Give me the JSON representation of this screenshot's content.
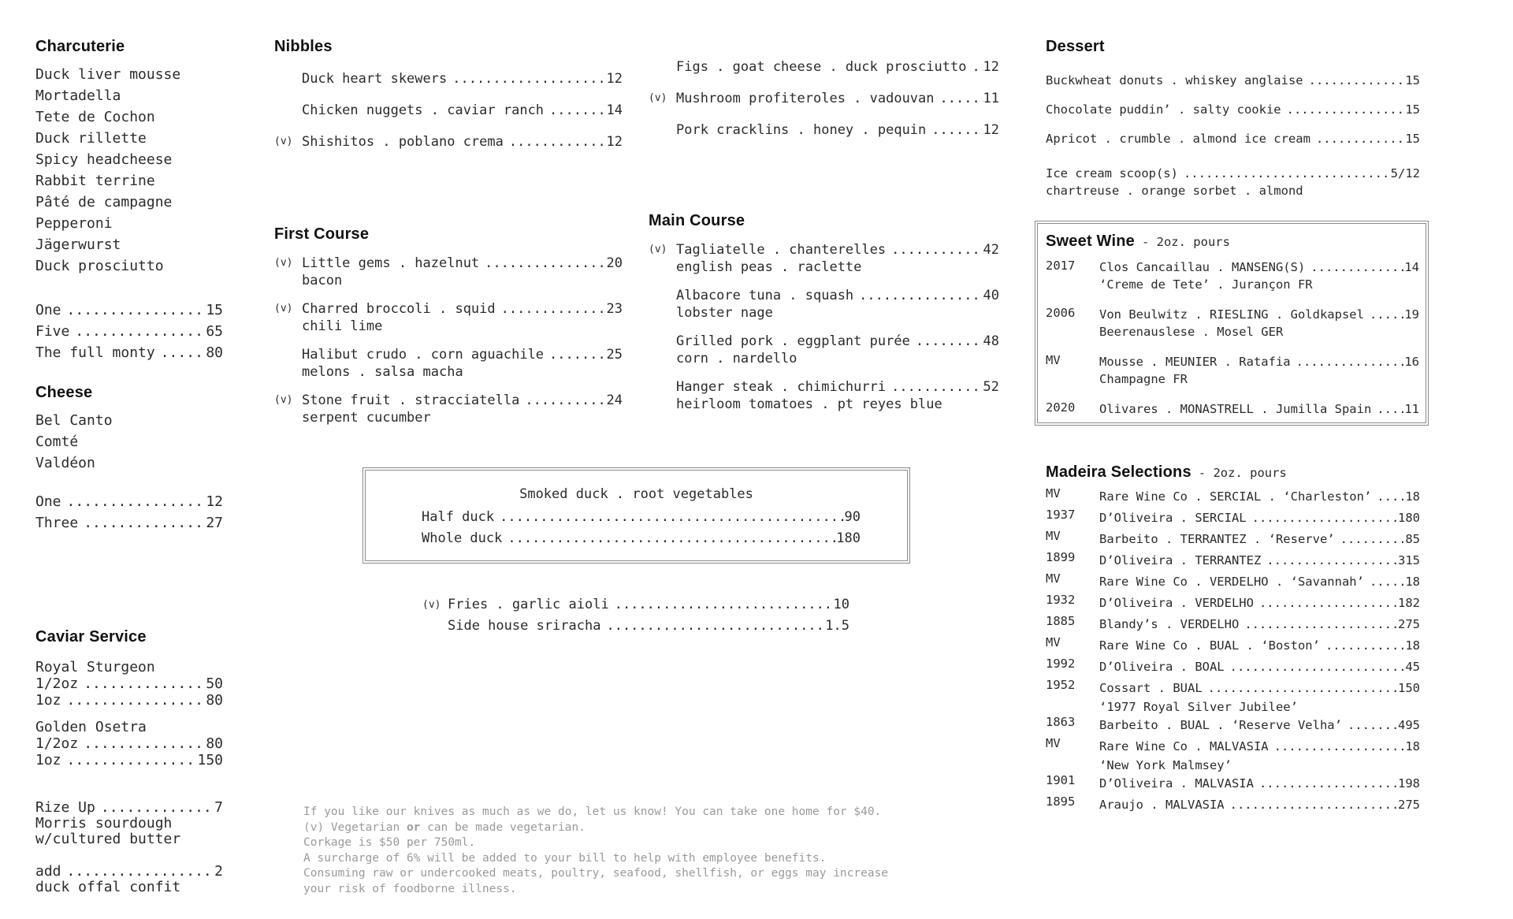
{
  "leader": "................................................................................",
  "colors": {
    "text": "#2b2b2b",
    "heading": "#111111",
    "muted": "#9a9a9a",
    "box_border": "#8a8a8a",
    "background": "#ffffff"
  },
  "left": {
    "charcuterie": {
      "title": "Charcuterie",
      "items": [
        "Duck liver mousse",
        "Mortadella",
        "Tete de Cochon",
        "Duck rillette",
        "Spicy headcheese",
        "Rabbit terrine",
        "Pâté de campagne",
        "Pepperoni",
        "Jägerwurst",
        "Duck prosciutto"
      ],
      "prices": [
        {
          "name": "One",
          "price": "15"
        },
        {
          "name": "Five",
          "price": "65"
        },
        {
          "name": "The full monty",
          "price": "80"
        }
      ]
    },
    "cheese": {
      "title": "Cheese",
      "items": [
        "Bel Canto",
        "Comté",
        "Valdéon"
      ],
      "prices": [
        {
          "name": "One",
          "price": "12"
        },
        {
          "name": "Three",
          "price": "27"
        }
      ]
    },
    "caviar": {
      "title": "Caviar Service",
      "tiers": [
        {
          "name": "Royal Sturgeon",
          "sizes": [
            {
              "name": "1/2oz",
              "price": "50"
            },
            {
              "name": "1oz",
              "price": "80"
            }
          ]
        },
        {
          "name": "Golden Osetra",
          "sizes": [
            {
              "name": "1/2oz",
              "price": "80"
            },
            {
              "name": "1oz",
              "price": "150"
            }
          ]
        }
      ]
    },
    "bread": {
      "blocks": [
        {
          "name": "Rize Up",
          "price": "7",
          "subs": [
            "Morris sourdough",
            "w/cultured butter"
          ]
        },
        {
          "name": "add",
          "price": "2",
          "subs": [
            "duck offal confit"
          ]
        }
      ]
    }
  },
  "nibbles": {
    "title": "Nibbles",
    "items": [
      {
        "v": "",
        "name": "Duck heart skewers",
        "price": "12"
      },
      {
        "v": "",
        "name": "Chicken nuggets . caviar ranch",
        "price": "14"
      },
      {
        "v": "(v)",
        "name": "Shishitos . poblano crema",
        "price": "12"
      }
    ]
  },
  "nibbles_right": {
    "items": [
      {
        "v": "",
        "name": "Figs . goat cheese . duck prosciutto",
        "price": "12"
      },
      {
        "v": "(v)",
        "name": "Mushroom profiteroles . vadouvan",
        "price": "11"
      },
      {
        "v": "",
        "name": "Pork cracklins . honey . pequin",
        "price": "12"
      }
    ]
  },
  "first_course": {
    "title": "First Course",
    "items": [
      {
        "v": "(v)",
        "name": "Little gems . hazelnut",
        "price": "20",
        "sub": "bacon"
      },
      {
        "v": "(v)",
        "name": "Charred broccoli . squid",
        "price": "23",
        "sub": "chili lime"
      },
      {
        "v": "",
        "name": "Halibut crudo . corn aguachile",
        "price": "25",
        "sub": "melons . salsa macha"
      },
      {
        "v": "(v)",
        "name": "Stone fruit . stracciatella",
        "price": "24",
        "sub": "serpent cucumber"
      }
    ]
  },
  "main_course": {
    "title": "Main Course",
    "items": [
      {
        "v": "(v)",
        "name": "Tagliatelle . chanterelles",
        "price": "42",
        "sub": "english peas . raclette"
      },
      {
        "v": "",
        "name": "Albacore tuna . squash",
        "price": "40",
        "sub": "lobster nage"
      },
      {
        "v": "",
        "name": "Grilled pork . eggplant purée",
        "price": "48",
        "sub": "corn . nardello"
      },
      {
        "v": "",
        "name": "Hanger steak . chimichurri",
        "price": "52",
        "sub": "heirloom tomatoes . pt reyes blue"
      }
    ]
  },
  "duck_feature": {
    "title": "Smoked duck . root vegetables",
    "rows": [
      {
        "name": "Half duck",
        "price": "90"
      },
      {
        "name": "Whole duck",
        "price": "180"
      }
    ]
  },
  "fries": {
    "rows": [
      {
        "v": "(v)",
        "name": "Fries . garlic aioli",
        "price": "10"
      },
      {
        "v": "",
        "name": "Side house sriracha",
        "price": "1.5"
      }
    ]
  },
  "dessert": {
    "title": "Dessert",
    "items": [
      {
        "name": "Buckwheat donuts . whiskey anglaise",
        "price": "15"
      },
      {
        "name": "Chocolate puddin’ . salty cookie",
        "price": "15"
      },
      {
        "name": "Apricot . crumble . almond ice cream",
        "price": "15"
      }
    ],
    "icecream": {
      "name": "Ice cream scoop(s)",
      "price": "5/12",
      "sub": "chartreuse . orange sorbet . almond"
    }
  },
  "sweet_wine": {
    "title": "Sweet Wine",
    "subtitle": "- 2oz. pours",
    "entries": [
      {
        "year": "2017",
        "name": "Clos Cancaillau . MANSENG(S)",
        "price": "14",
        "sub": "‘Creme de Tete’ . Jurançon FR"
      },
      {
        "year": "2006",
        "name": "Von Beulwitz . RIESLING . Goldkapsel",
        "price": "19",
        "sub": "Beerenauslese . Mosel GER"
      },
      {
        "year": "MV",
        "name": "Mousse . MEUNIER . Ratafia",
        "price": "16",
        "sub": "Champagne FR"
      },
      {
        "year": "2020",
        "name": "Olivares . MONASTRELL . Jumilla Spain",
        "price": "11"
      }
    ]
  },
  "madeira": {
    "title": "Madeira Selections",
    "subtitle": "- 2oz. pours",
    "entries": [
      {
        "year": "MV",
        "name": "Rare Wine Co . SERCIAL . ‘Charleston’",
        "price": "18"
      },
      {
        "year": "1937",
        "name": "D’Oliveira . SERCIAL",
        "price": "180"
      },
      {
        "year": "MV",
        "name": "Barbeito . TERRANTEZ . ‘Reserve’",
        "price": "85"
      },
      {
        "year": "1899",
        "name": "D’Oliveira . TERRANTEZ",
        "price": "315"
      },
      {
        "year": "MV",
        "name": "Rare Wine Co . VERDELHO . ‘Savannah’",
        "price": "18"
      },
      {
        "year": "1932",
        "name": "D’Oliveira . VERDELHO",
        "price": "182"
      },
      {
        "year": "1885",
        "name": "Blandy’s . VERDELHO",
        "price": "275"
      },
      {
        "year": "MV",
        "name": "Rare Wine Co . BUAL . ‘Boston’",
        "price": "18"
      },
      {
        "year": "1992",
        "name": "D’Oliveira . BOAL",
        "price": "45"
      },
      {
        "year": "1952",
        "name": "Cossart . BUAL",
        "price": "150",
        "sub": "‘1977 Royal Silver Jubilee’"
      },
      {
        "year": "1863",
        "name": "Barbeito . BUAL . ‘Reserve Velha’",
        "price": "495"
      },
      {
        "year": "MV",
        "name": "Rare Wine Co . MALVASIA",
        "price": "18",
        "sub": "‘New York Malmsey’"
      },
      {
        "year": "1901",
        "name": "D’Oliveira . MALVASIA",
        "price": "198"
      },
      {
        "year": "1895",
        "name": "Araujo . MALVASIA",
        "price": "275"
      }
    ]
  },
  "fineprint": {
    "line1": "If you like our knives as much as we do, let us know! You can take one home for $40.",
    "line2_pre": "(v) Vegetarian ",
    "line2_bold": "or",
    "line2_post": " can be made vegetarian.",
    "line3": "Corkage is $50 per 750ml.",
    "line4": "A surcharge of 6% will be added to your bill to help with employee benefits.",
    "line5": "Consuming raw or undercooked meats, poultry, seafood, shellfish, or eggs may increase",
    "line6": "your risk of foodborne illness."
  }
}
